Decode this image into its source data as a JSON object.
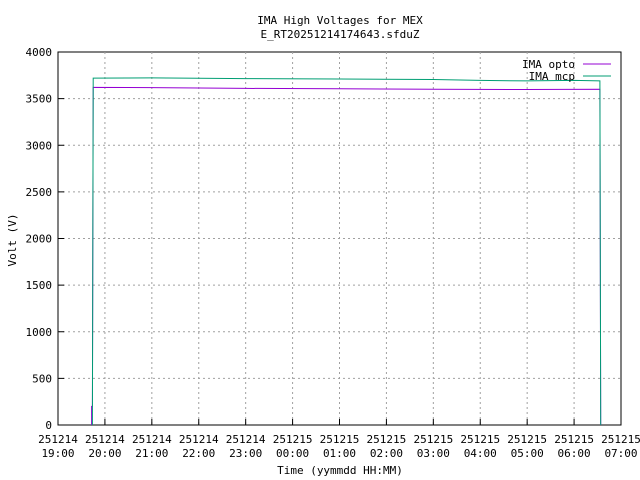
{
  "chart_data": {
    "type": "line",
    "title": "IMA High Voltages for MEX",
    "subtitle": "E_RT20251214174643.sfduZ",
    "x_label": "Time (yymmdd HH:MM)",
    "y_label": "Volt (V)",
    "xlim": [
      "251214 19:00",
      "251215 07:00"
    ],
    "xticks": [
      {
        "value": "251214 19:00",
        "label": [
          "251214",
          "19:00"
        ]
      },
      {
        "value": "251214 20:00",
        "label": [
          "251214",
          "20:00"
        ]
      },
      {
        "value": "251214 21:00",
        "label": [
          "251214",
          "21:00"
        ]
      },
      {
        "value": "251214 22:00",
        "label": [
          "251214",
          "22:00"
        ]
      },
      {
        "value": "251214 23:00",
        "label": [
          "251214",
          "23:00"
        ]
      },
      {
        "value": "251215 00:00",
        "label": [
          "251215",
          "00:00"
        ]
      },
      {
        "value": "251215 01:00",
        "label": [
          "251215",
          "01:00"
        ]
      },
      {
        "value": "251215 02:00",
        "label": [
          "251215",
          "02:00"
        ]
      },
      {
        "value": "251215 03:00",
        "label": [
          "251215",
          "03:00"
        ]
      },
      {
        "value": "251215 04:00",
        "label": [
          "251215",
          "04:00"
        ]
      },
      {
        "value": "251215 05:00",
        "label": [
          "251215",
          "05:00"
        ]
      },
      {
        "value": "251215 06:00",
        "label": [
          "251215",
          "06:00"
        ]
      },
      {
        "value": "251215 07:00",
        "label": [
          "251215",
          "07:00"
        ]
      }
    ],
    "ylim": [
      0,
      4000
    ],
    "yticks": [
      0,
      500,
      1000,
      1500,
      2000,
      2500,
      3000,
      3500,
      4000
    ],
    "grid": true,
    "legend": "top-right",
    "series": [
      {
        "name": "IMA opto",
        "color": "#9400d3",
        "x": [
          "251214 19:43",
          "251214 19:43",
          "251214 19:44",
          "251214 19:45",
          "251214 21:00",
          "251214 23:00",
          "251215 01:00",
          "251215 03:00",
          "251215 05:00",
          "251215 06:33",
          "251215 06:34"
        ],
        "values": [
          0,
          200,
          200,
          3620,
          3618,
          3610,
          3605,
          3600,
          3598,
          3600,
          0
        ]
      },
      {
        "name": "IMA mcp",
        "color": "#009e73",
        "x": [
          "251214 19:44",
          "251214 19:45",
          "251214 21:00",
          "251214 23:00",
          "251215 01:00",
          "251215 03:00",
          "251215 04:00",
          "251215 05:00",
          "251215 06:00",
          "251215 06:33",
          "251215 06:34"
        ],
        "values": [
          0,
          3720,
          3722,
          3715,
          3710,
          3705,
          3695,
          3690,
          3695,
          3690,
          0
        ]
      }
    ]
  }
}
